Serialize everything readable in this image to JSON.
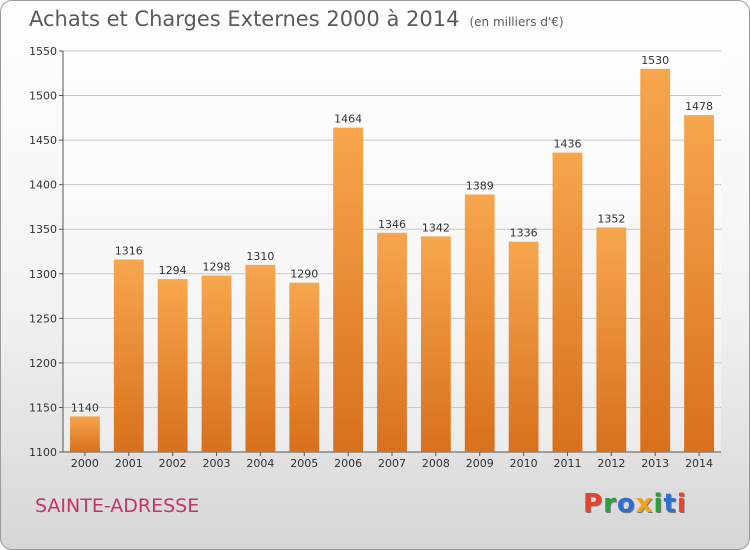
{
  "header": {
    "title": "Achats et Charges Externes 2000 à 2014",
    "subtitle": "(en milliers d'€)"
  },
  "footer": {
    "commune": "SAINTE-ADRESSE",
    "logo_text": "Proxiti"
  },
  "colors": {
    "bar_top": "#f7a64e",
    "bar_bottom": "#d8701c",
    "commune_text": "#c8316e",
    "logo": [
      "#e8412c",
      "#2aa13c",
      "#2d6fd0",
      "#f2a21b",
      "#2aa13c",
      "#2d6fd0",
      "#e8412c"
    ]
  },
  "chart_data": {
    "type": "bar",
    "title": "Achats et Charges Externes 2000 à 2014",
    "subtitle": "(en milliers d'€)",
    "categories": [
      "2000",
      "2001",
      "2002",
      "2003",
      "2004",
      "2005",
      "2006",
      "2007",
      "2008",
      "2009",
      "2010",
      "2011",
      "2012",
      "2013",
      "2014"
    ],
    "values": [
      1140,
      1316,
      1294,
      1298,
      1310,
      1290,
      1464,
      1346,
      1342,
      1389,
      1336,
      1436,
      1352,
      1530,
      1478
    ],
    "ylim": [
      1100,
      1550
    ],
    "yticks": [
      1100,
      1150,
      1200,
      1250,
      1300,
      1350,
      1400,
      1450,
      1500,
      1550
    ],
    "grid": true,
    "data_labels": true
  }
}
